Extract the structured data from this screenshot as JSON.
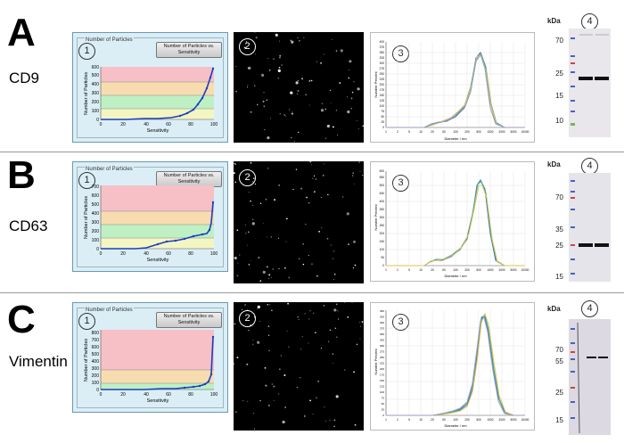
{
  "rows": [
    {
      "letter": "A",
      "name": "CD9",
      "panel1": {
        "groupbox_label": "Number of Particles",
        "button_label": "Number of Particles vs. Sensitivity",
        "ylabel": "Number of Particles",
        "xlabel": "Sensitivity",
        "yticks": [
          "0",
          "100",
          "200",
          "300",
          "400",
          "500",
          "600"
        ],
        "xticks": [
          "0",
          "20",
          "40",
          "60",
          "80",
          "100"
        ],
        "marker": "1"
      },
      "panel2": {
        "marker": "2"
      },
      "panel3": {
        "marker": "3",
        "ylabel": "Number Percent",
        "xlabel": "Diameter / nm",
        "yticks": [
          "0",
          "25",
          "50",
          "75",
          "100",
          "125",
          "150",
          "175",
          "200",
          "225",
          "250",
          "275",
          "300",
          "325",
          "350",
          "375",
          "400"
        ],
        "xticks": [
          "1",
          "2",
          "5",
          "10",
          "20",
          "50",
          "100",
          "200",
          "500",
          "1000",
          "2000",
          "5000",
          "10000"
        ]
      },
      "panel4": {
        "marker": "4",
        "kda_label": "kDa",
        "mw_labels": [
          "70",
          "25",
          "15",
          "10"
        ]
      }
    },
    {
      "letter": "B",
      "name": "CD63",
      "panel1": {
        "groupbox_label": "Number of Particles",
        "button_label": "Number of Particles vs. Sensitivity",
        "ylabel": "Number of Particles",
        "xlabel": "Sensitivity",
        "yticks": [
          "0",
          "100",
          "200",
          "300",
          "400",
          "500",
          "600",
          "700"
        ],
        "xticks": [
          "0",
          "20",
          "40",
          "60",
          "80",
          "100"
        ],
        "marker": "1"
      },
      "panel2": {
        "marker": "2"
      },
      "panel3": {
        "marker": "3",
        "ylabel": "Number Percent",
        "xlabel": "Diameter / nm",
        "yticks": [
          "0",
          "50",
          "100",
          "150",
          "200",
          "250",
          "300",
          "350",
          "400",
          "450",
          "500",
          "550",
          "600"
        ],
        "xticks": [
          "1",
          "2",
          "5",
          "10",
          "20",
          "50",
          "100",
          "200",
          "500",
          "1000",
          "2000",
          "5000",
          "10000"
        ]
      },
      "panel4": {
        "marker": "4",
        "kda_label": "kDa",
        "mw_labels": [
          "70",
          "35",
          "25",
          "15"
        ]
      }
    },
    {
      "letter": "C",
      "name": "Vimentin",
      "panel1": {
        "groupbox_label": "Number of Particles",
        "button_label": "Number of Particles vs. Sensitivity",
        "ylabel": "Number of Particles",
        "xlabel": "Sensitivity",
        "yticks": [
          "0",
          "100",
          "200",
          "300",
          "400",
          "500",
          "600",
          "700",
          "800"
        ],
        "xticks": [
          "0",
          "20",
          "40",
          "60",
          "80",
          "100"
        ],
        "marker": "1"
      },
      "panel2": {
        "marker": "2"
      },
      "panel3": {
        "marker": "3",
        "ylabel": "Number Percent",
        "xlabel": "Diameter / nm",
        "yticks": [
          "0",
          "25",
          "50",
          "75",
          "100",
          "125",
          "150",
          "175",
          "200",
          "225",
          "250",
          "275",
          "300",
          "325",
          "350",
          "375",
          "400",
          "425",
          "450"
        ],
        "xticks": [
          "1",
          "2",
          "5",
          "10",
          "20",
          "50",
          "100",
          "200",
          "500",
          "1000",
          "2000",
          "5000",
          "10000"
        ]
      },
      "panel4": {
        "marker": "4",
        "kda_label": "kDa",
        "mw_labels": [
          "70",
          "55",
          "25",
          "15"
        ]
      }
    }
  ]
}
